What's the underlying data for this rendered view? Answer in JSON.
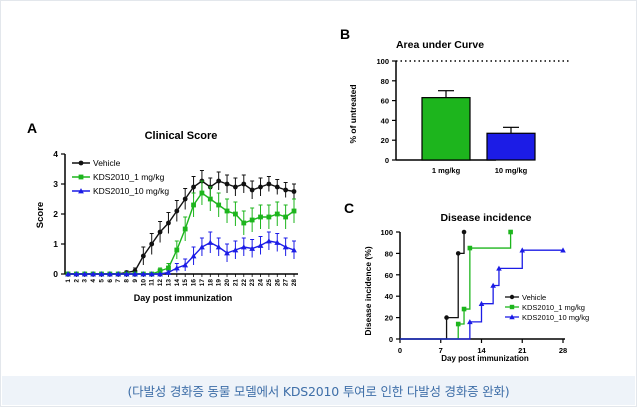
{
  "caption": "(다발성 경화증 동물 모델에서 KDS2010 투여로 인한 다발성 경화증 완화)",
  "colors": {
    "vehicle": "#111111",
    "low": "#1db51d",
    "high": "#1c1ce6",
    "caption": "#3f6fa8"
  },
  "chart_data": [
    {
      "panel_label": "A",
      "type": "line",
      "title": "Clinical Score",
      "xlabel": "Day post immunization",
      "ylabel": "Score",
      "xlim": [
        1,
        28
      ],
      "ylim": [
        0,
        4
      ],
      "yticks": [
        "0",
        "1",
        "2",
        "3",
        "4"
      ],
      "xticks": [
        "1",
        "2",
        "3",
        "4",
        "5",
        "6",
        "7",
        "8",
        "9",
        "10",
        "11",
        "12",
        "13",
        "14",
        "15",
        "16",
        "17",
        "18",
        "19",
        "20",
        "21",
        "22",
        "23",
        "24",
        "25",
        "26",
        "27",
        "28"
      ],
      "legend_position": "top-left",
      "x": [
        1,
        2,
        3,
        4,
        5,
        6,
        7,
        8,
        9,
        10,
        11,
        12,
        13,
        14,
        15,
        16,
        17,
        18,
        19,
        20,
        21,
        22,
        23,
        24,
        25,
        26,
        27,
        28
      ],
      "series": [
        {
          "name": "Vehicle",
          "values": [
            0,
            0,
            0,
            0,
            0,
            0,
            0,
            0.05,
            0.1,
            0.6,
            1.0,
            1.4,
            1.7,
            2.1,
            2.5,
            2.9,
            3.1,
            2.9,
            3.1,
            3.0,
            2.9,
            3.0,
            2.8,
            2.9,
            3.0,
            2.9,
            2.8,
            2.75
          ],
          "errors": [
            0,
            0,
            0,
            0,
            0,
            0,
            0,
            0.05,
            0.1,
            0.3,
            0.35,
            0.35,
            0.35,
            0.35,
            0.35,
            0.35,
            0.35,
            0.3,
            0.3,
            0.3,
            0.3,
            0.3,
            0.3,
            0.3,
            0.25,
            0.25,
            0.25,
            0.25
          ]
        },
        {
          "name": "KDS2010_1 mg/kg",
          "values": [
            0,
            0,
            0,
            0,
            0,
            0,
            0,
            0,
            0,
            0,
            0,
            0.1,
            0.2,
            0.8,
            1.5,
            2.3,
            2.7,
            2.5,
            2.3,
            2.1,
            2.0,
            1.7,
            1.8,
            1.9,
            1.9,
            2.0,
            1.9,
            2.1
          ],
          "errors": [
            0,
            0,
            0,
            0,
            0,
            0,
            0,
            0,
            0,
            0,
            0,
            0.1,
            0.15,
            0.3,
            0.4,
            0.4,
            0.4,
            0.4,
            0.4,
            0.4,
            0.4,
            0.4,
            0.4,
            0.4,
            0.4,
            0.4,
            0.4,
            0.4
          ]
        },
        {
          "name": "KDS2010_10 mg/kg",
          "values": [
            0,
            0,
            0,
            0,
            0,
            0,
            0,
            0,
            0,
            0,
            0,
            0,
            0.05,
            0.2,
            0.3,
            0.6,
            0.9,
            1.05,
            0.9,
            0.7,
            0.8,
            0.9,
            0.85,
            0.95,
            1.1,
            1.05,
            0.9,
            0.8
          ],
          "errors": [
            0,
            0,
            0,
            0,
            0,
            0,
            0,
            0,
            0,
            0,
            0,
            0,
            0.05,
            0.15,
            0.2,
            0.3,
            0.3,
            0.35,
            0.3,
            0.3,
            0.3,
            0.3,
            0.3,
            0.3,
            0.3,
            0.3,
            0.3,
            0.3
          ]
        }
      ]
    },
    {
      "panel_label": "B",
      "type": "bar",
      "title": "Area under Curve",
      "xlabel": "",
      "ylabel": "% of untreated",
      "ylim": [
        0,
        100
      ],
      "yticks": [
        "0",
        "20",
        "40",
        "60",
        "80",
        "100"
      ],
      "reference_line": 100,
      "categories": [
        "1 mg/kg",
        "10 mg/kg"
      ],
      "values": [
        63,
        27
      ],
      "errors": [
        7,
        6
      ]
    },
    {
      "panel_label": "C",
      "type": "line",
      "step": true,
      "title": "Disease incidence",
      "xlabel": "Day post immunization",
      "ylabel": "Disease incidence (%)",
      "xlim": [
        0,
        28
      ],
      "ylim": [
        0,
        100
      ],
      "xticks": [
        "0",
        "7",
        "14",
        "21",
        "28"
      ],
      "yticks": [
        "0",
        "20",
        "40",
        "60",
        "80",
        "100"
      ],
      "legend_position": "bottom-right",
      "series": [
        {
          "name": "Vehicle",
          "x": [
            0,
            8,
            10,
            11
          ],
          "y": [
            0,
            20,
            80,
            100
          ]
        },
        {
          "name": "KDS2010_1 mg/kg",
          "x": [
            0,
            10,
            11,
            12,
            19
          ],
          "y": [
            0,
            14,
            28,
            85,
            100
          ]
        },
        {
          "name": "KDS2010_10 mg/kg",
          "x": [
            0,
            12,
            14,
            16,
            17,
            21,
            28
          ],
          "y": [
            0,
            16,
            33,
            50,
            66,
            83,
            83
          ]
        }
      ]
    }
  ]
}
